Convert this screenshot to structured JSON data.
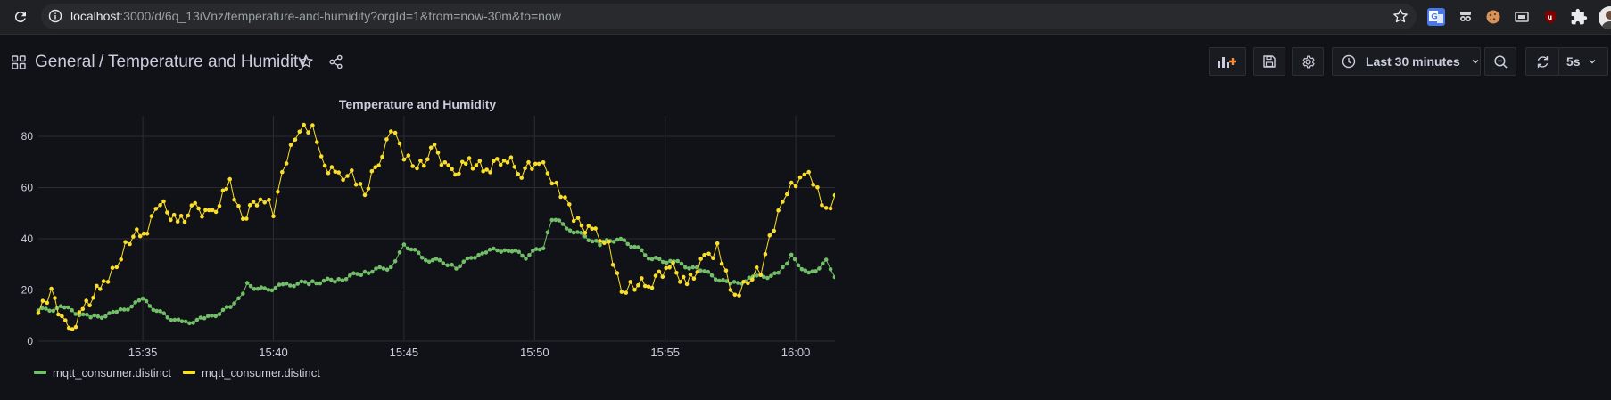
{
  "browser": {
    "url_host": "localhost",
    "url_rest": ":3000/d/6q_13iVnz/temperature-and-humidity?orgId=1&from=now-30m&to=now"
  },
  "nav": {
    "folder": "General",
    "separator": "/",
    "dashboard_title": "Temperature and Humidity"
  },
  "toolbar": {
    "time_range": "Last 30 minutes",
    "refresh_interval": "5s"
  },
  "colors": {
    "humidity": "#73bf69",
    "temperature": "#fade2a",
    "grid": "#2b2c31"
  },
  "panel": {
    "title": "Temperature and Humidity"
  },
  "chart_data": {
    "type": "line",
    "title": "Temperature and Humidity",
    "xlabel": "",
    "ylabel": "",
    "x_range": [
      "15:31:00",
      "16:01:30"
    ],
    "ylim": [
      0,
      88
    ],
    "y_ticks": [
      0,
      20,
      40,
      60,
      80
    ],
    "x_ticks": [
      "15:35",
      "15:40",
      "15:45",
      "15:50",
      "15:55",
      "16:00"
    ],
    "grid": true,
    "legend_position": "bottom-left",
    "series": [
      {
        "name": "mqtt_consumer.distinct",
        "color": "#73bf69",
        "points": [
          [
            "15:31:00",
            12
          ],
          [
            "15:32:00",
            13
          ],
          [
            "15:33:00",
            9
          ],
          [
            "15:34:00",
            11
          ],
          [
            "15:35:00",
            16
          ],
          [
            "15:35:40",
            11
          ],
          [
            "15:36:30",
            7
          ],
          [
            "15:37:30",
            9
          ],
          [
            "15:38:30",
            14
          ],
          [
            "15:39:00",
            22
          ],
          [
            "15:39:40",
            20
          ],
          [
            "15:40:30",
            22
          ],
          [
            "15:41:30",
            23
          ],
          [
            "15:42:30",
            24
          ],
          [
            "15:43:30",
            27
          ],
          [
            "15:44:30",
            29
          ],
          [
            "15:45:00",
            38
          ],
          [
            "15:45:50",
            32
          ],
          [
            "15:46:30",
            31
          ],
          [
            "15:47:00",
            29
          ],
          [
            "15:48:00",
            35
          ],
          [
            "15:49:00",
            36
          ],
          [
            "15:49:40",
            33
          ],
          [
            "15:50:20",
            37
          ],
          [
            "15:50:40",
            48
          ],
          [
            "15:51:30",
            43
          ],
          [
            "15:52:30",
            38
          ],
          [
            "15:53:10",
            40
          ],
          [
            "15:53:50",
            37
          ],
          [
            "15:54:30",
            32
          ],
          [
            "15:55:20",
            31
          ],
          [
            "15:56:30",
            27
          ],
          [
            "15:57:30",
            22
          ],
          [
            "15:58:30",
            25
          ],
          [
            "15:59:20",
            26
          ],
          [
            "15:59:50",
            33
          ],
          [
            "16:00:30",
            26
          ],
          [
            "16:01:10",
            31
          ],
          [
            "16:01:30",
            25
          ]
        ]
      },
      {
        "name": "mqtt_consumer.distinct",
        "color": "#fade2a",
        "points": [
          [
            "15:31:00",
            11
          ],
          [
            "15:31:30",
            19
          ],
          [
            "15:32:10",
            3
          ],
          [
            "15:32:50",
            14
          ],
          [
            "15:33:30",
            23
          ],
          [
            "15:34:00",
            30
          ],
          [
            "15:34:30",
            40
          ],
          [
            "15:35:10",
            44
          ],
          [
            "15:35:40",
            54
          ],
          [
            "15:36:20",
            46
          ],
          [
            "15:37:00",
            52
          ],
          [
            "15:37:40",
            49
          ],
          [
            "15:38:20",
            62
          ],
          [
            "15:38:50",
            48
          ],
          [
            "15:39:30",
            57
          ],
          [
            "15:40:00",
            51
          ],
          [
            "15:40:30",
            71
          ],
          [
            "15:41:00",
            82
          ],
          [
            "15:41:30",
            83
          ],
          [
            "15:41:50",
            70
          ],
          [
            "15:42:30",
            64
          ],
          [
            "15:43:00",
            66
          ],
          [
            "15:43:30",
            58
          ],
          [
            "15:44:10",
            74
          ],
          [
            "15:44:30",
            84
          ],
          [
            "15:45:00",
            72
          ],
          [
            "15:45:30",
            67
          ],
          [
            "15:46:10",
            75
          ],
          [
            "15:46:50",
            65
          ],
          [
            "15:47:30",
            70
          ],
          [
            "15:48:10",
            67
          ],
          [
            "15:48:50",
            72
          ],
          [
            "15:49:30",
            66
          ],
          [
            "15:50:10",
            71
          ],
          [
            "15:50:40",
            62
          ],
          [
            "15:51:10",
            55
          ],
          [
            "15:51:40",
            46
          ],
          [
            "15:52:20",
            42
          ],
          [
            "15:52:50",
            38
          ],
          [
            "15:53:20",
            20
          ],
          [
            "15:53:50",
            22
          ],
          [
            "15:54:30",
            23
          ],
          [
            "15:55:10",
            30
          ],
          [
            "15:55:50",
            22
          ],
          [
            "15:56:30",
            32
          ],
          [
            "15:57:00",
            36
          ],
          [
            "15:57:20",
            26
          ],
          [
            "15:57:40",
            18
          ],
          [
            "15:58:10",
            24
          ],
          [
            "15:58:40",
            28
          ],
          [
            "15:59:10",
            45
          ],
          [
            "15:59:40",
            58
          ],
          [
            "16:00:10",
            63
          ],
          [
            "16:00:30",
            64
          ],
          [
            "16:00:50",
            58
          ],
          [
            "16:01:10",
            51
          ],
          [
            "16:01:30",
            57
          ]
        ]
      }
    ]
  }
}
